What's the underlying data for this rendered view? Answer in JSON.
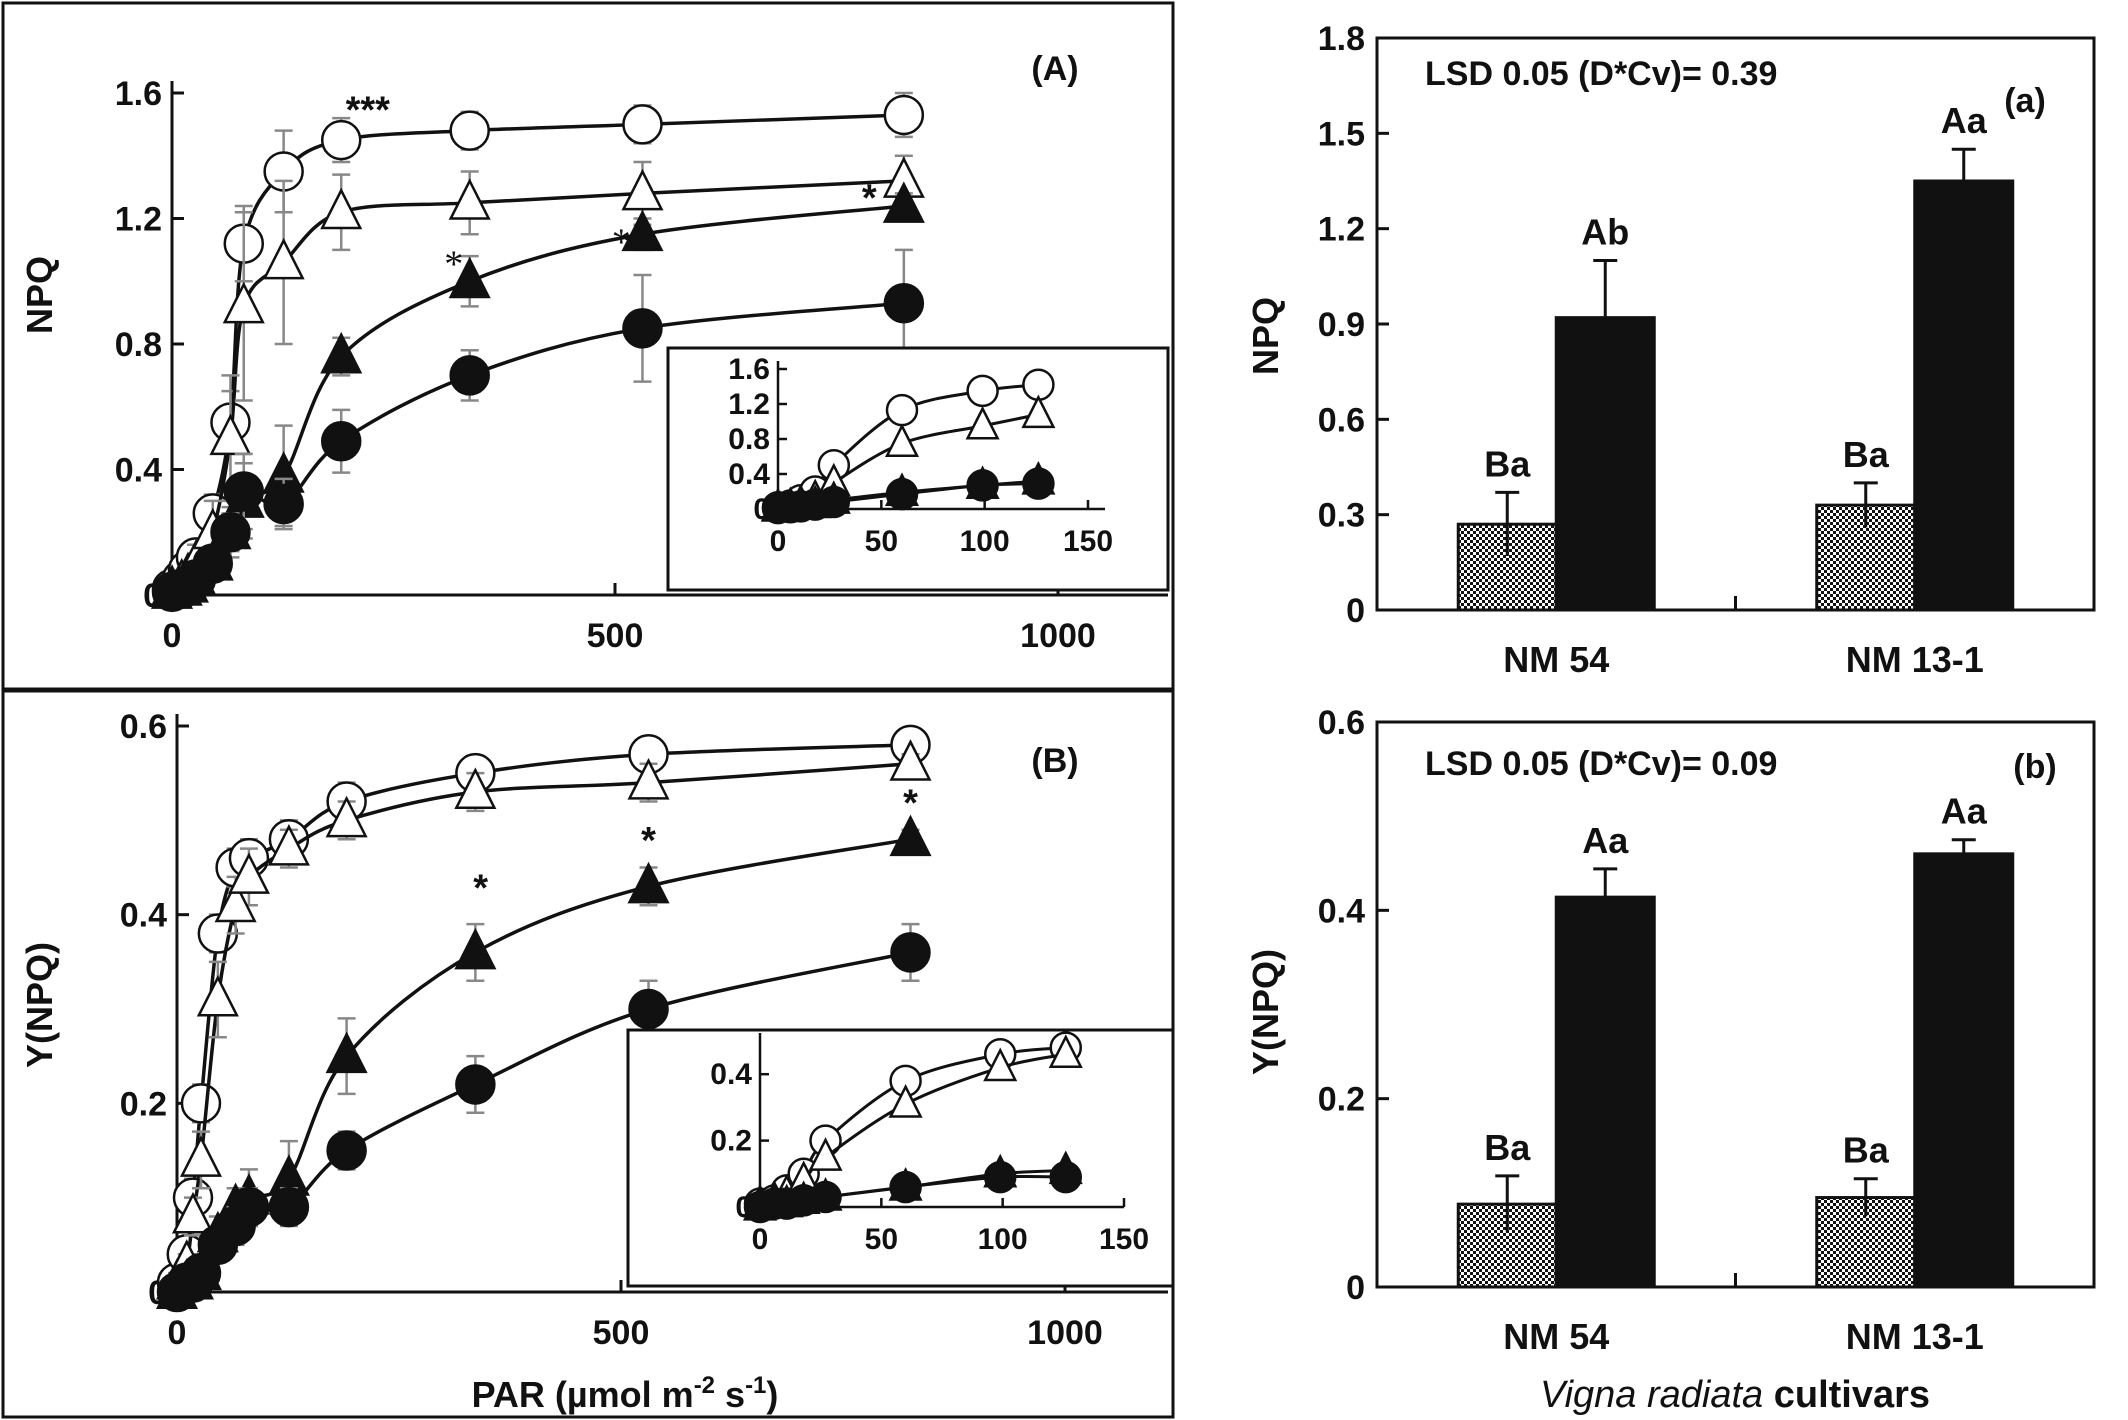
{
  "chart_data": [
    {
      "panel": "A",
      "type": "line",
      "label": "(A)",
      "ylabel": "NPQ",
      "xlabel": "",
      "xlim": [
        0,
        1000
      ],
      "ylim": [
        0,
        1.6
      ],
      "xticks": [
        "0",
        "500",
        "1000"
      ],
      "yticks": [
        "0",
        "0.4",
        "0.8",
        "1.2",
        "1.6"
      ],
      "x": [
        0,
        11,
        18,
        27,
        46,
        66,
        81,
        126,
        191,
        336,
        531,
        826
      ],
      "series": [
        {
          "marker": "open-circle",
          "values": [
            0.02,
            0.05,
            0.08,
            0.12,
            0.26,
            0.55,
            1.12,
            1.35,
            1.45,
            1.48,
            1.5,
            1.53
          ],
          "err": [
            0.02,
            0.03,
            0.04,
            0.05,
            0.06,
            0.1,
            0.12,
            0.13,
            0.07,
            0.06,
            0.06,
            0.07
          ]
        },
        {
          "marker": "open-triangle",
          "values": [
            0.02,
            0.04,
            0.06,
            0.1,
            0.2,
            0.5,
            0.92,
            1.06,
            1.22,
            1.25,
            1.28,
            1.32
          ],
          "err": [
            0.02,
            0.03,
            0.04,
            0.06,
            0.1,
            0.2,
            0.3,
            0.26,
            0.12,
            0.1,
            0.1,
            0.08
          ]
        },
        {
          "marker": "filled-triangle",
          "values": [
            0.01,
            0.02,
            0.03,
            0.05,
            0.1,
            0.2,
            0.3,
            0.38,
            0.76,
            1.0,
            1.15,
            1.24
          ],
          "err": [
            0.01,
            0.02,
            0.02,
            0.03,
            0.05,
            0.08,
            0.12,
            0.16,
            0.06,
            0.08,
            0.05,
            0.04
          ]
        },
        {
          "marker": "filled-circle",
          "values": [
            0.01,
            0.02,
            0.03,
            0.05,
            0.1,
            0.2,
            0.33,
            0.29,
            0.49,
            0.7,
            0.85,
            0.93
          ],
          "err": [
            0.01,
            0.02,
            0.02,
            0.03,
            0.05,
            0.06,
            0.12,
            0.08,
            0.1,
            0.08,
            0.17,
            0.17
          ]
        }
      ],
      "annotations": [
        {
          "text": "***",
          "x": 221,
          "y": 1.55,
          "style": "bold"
        },
        {
          "text": "*",
          "x": 318,
          "y": 1.06,
          "style": "plain"
        },
        {
          "text": "*",
          "x": 507,
          "y": 1.13,
          "style": "plain"
        },
        {
          "text": "*",
          "x": 787,
          "y": 1.27,
          "style": "bold"
        }
      ],
      "inset": {
        "xlim": [
          0,
          150
        ],
        "ylim": [
          0,
          1.6
        ],
        "xticks": [
          "0",
          "50",
          "100",
          "150"
        ],
        "yticks": [
          "0",
          "0.4",
          "0.8",
          "1.2",
          "1.6"
        ],
        "x": [
          0,
          6,
          11,
          18,
          27,
          60,
          99,
          126
        ],
        "series": [
          {
            "marker": "open-circle",
            "values": [
              0.02,
              0.04,
              0.1,
              0.2,
              0.5,
              1.13,
              1.35,
              1.42
            ]
          },
          {
            "marker": "open-triangle",
            "values": [
              0.02,
              0.03,
              0.06,
              0.12,
              0.3,
              0.75,
              0.95,
              1.08
            ]
          },
          {
            "marker": "filled-triangle",
            "values": [
              0.01,
              0.02,
              0.03,
              0.05,
              0.1,
              0.19,
              0.27,
              0.32
            ]
          },
          {
            "marker": "filled-circle",
            "values": [
              0.01,
              0.02,
              0.03,
              0.05,
              0.08,
              0.17,
              0.27,
              0.29
            ]
          }
        ]
      }
    },
    {
      "panel": "B",
      "type": "line",
      "label": "(B)",
      "ylabel": "Y(NPQ)",
      "xlabel": "PAR (µmol m⁻² s⁻¹)",
      "xlabel_main": "PAR (µmol m",
      "xlabel_sup1": "-2",
      "xlabel_mid": " s",
      "xlabel_sup2": "-1",
      "xlabel_end": ")",
      "xlim": [
        0,
        1000
      ],
      "ylim": [
        0,
        0.6
      ],
      "xticks": [
        "0",
        "500",
        "1000"
      ],
      "yticks": [
        "0",
        "0.2",
        "0.4",
        "0.6"
      ],
      "x": [
        0,
        11,
        18,
        27,
        46,
        66,
        81,
        126,
        191,
        336,
        531,
        826
      ],
      "series": [
        {
          "marker": "open-circle",
          "values": [
            0.01,
            0.04,
            0.1,
            0.2,
            0.38,
            0.45,
            0.46,
            0.48,
            0.52,
            0.55,
            0.57,
            0.58
          ],
          "err": [
            0.01,
            0.01,
            0.02,
            0.02,
            0.02,
            0.02,
            0.02,
            0.02,
            0.02,
            0.01,
            0.01,
            0.01
          ]
        },
        {
          "marker": "open-triangle",
          "values": [
            0.01,
            0.03,
            0.08,
            0.14,
            0.31,
            0.41,
            0.44,
            0.47,
            0.5,
            0.53,
            0.54,
            0.56
          ],
          "err": [
            0.01,
            0.01,
            0.02,
            0.03,
            0.04,
            0.03,
            0.03,
            0.02,
            0.02,
            0.02,
            0.02,
            0.01
          ]
        },
        {
          "marker": "filled-triangle",
          "values": [
            0.0,
            0.01,
            0.01,
            0.02,
            0.06,
            0.09,
            0.1,
            0.12,
            0.25,
            0.36,
            0.43,
            0.48
          ],
          "err": [
            0.0,
            0.01,
            0.01,
            0.01,
            0.02,
            0.02,
            0.03,
            0.04,
            0.04,
            0.03,
            0.02,
            0.01
          ]
        },
        {
          "marker": "filled-circle",
          "values": [
            0.0,
            0.01,
            0.01,
            0.02,
            0.05,
            0.07,
            0.09,
            0.09,
            0.15,
            0.22,
            0.3,
            0.36
          ],
          "err": [
            0.0,
            0.01,
            0.01,
            0.01,
            0.01,
            0.02,
            0.02,
            0.02,
            0.02,
            0.03,
            0.03,
            0.03
          ]
        }
      ],
      "annotations": [
        {
          "text": "*",
          "x": 342,
          "y": 0.43,
          "style": "bold"
        },
        {
          "text": "*",
          "x": 531,
          "y": 0.48,
          "style": "bold"
        },
        {
          "text": "*",
          "x": 826,
          "y": 0.52,
          "style": "bold"
        }
      ],
      "inset": {
        "xlim": [
          0,
          150
        ],
        "ylim": [
          0,
          0.5
        ],
        "xticks": [
          "0",
          "50",
          "100",
          "150"
        ],
        "yticks": [
          "0",
          "0.2",
          "0.4"
        ],
        "x": [
          0,
          6,
          11,
          18,
          27,
          60,
          99,
          126
        ],
        "series": [
          {
            "marker": "open-circle",
            "values": [
              0.01,
              0.02,
              0.05,
              0.1,
              0.2,
              0.38,
              0.46,
              0.48
            ]
          },
          {
            "marker": "open-triangle",
            "values": [
              0.01,
              0.02,
              0.04,
              0.08,
              0.15,
              0.31,
              0.42,
              0.46
            ]
          },
          {
            "marker": "filled-triangle",
            "values": [
              0.0,
              0.01,
              0.01,
              0.02,
              0.03,
              0.06,
              0.1,
              0.11
            ]
          },
          {
            "marker": "filled-circle",
            "values": [
              0.0,
              0.01,
              0.01,
              0.02,
              0.03,
              0.06,
              0.09,
              0.09
            ]
          }
        ]
      }
    },
    {
      "panel": "a",
      "type": "bar",
      "label": "(a)",
      "ylabel": "NPQ",
      "lsd": "LSD 0.05 (D*Cv)= 0.39",
      "ylim": [
        0,
        1.8
      ],
      "yticks": [
        "0",
        "0.3",
        "0.6",
        "0.9",
        "1.2",
        "1.5",
        "1.8"
      ],
      "categories": [
        "NM 54",
        "NM 13-1"
      ],
      "series": [
        {
          "pattern": "dotted",
          "values": [
            0.27,
            0.33
          ],
          "err": [
            0.1,
            0.07
          ],
          "labels": [
            "Ba",
            "Ba"
          ]
        },
        {
          "pattern": "solid",
          "values": [
            0.92,
            1.35
          ],
          "err": [
            0.18,
            0.1
          ],
          "labels": [
            "Ab",
            "Aa"
          ]
        }
      ]
    },
    {
      "panel": "b",
      "type": "bar",
      "label": "(b)",
      "ylabel": "Y(NPQ)",
      "lsd": "LSD 0.05 (D*Cv)= 0.09",
      "xlabel_italic": "Vigna radiata",
      "xlabel_rest": " cultivars",
      "ylim": [
        0,
        0.6
      ],
      "yticks": [
        "0",
        "0.2",
        "0.4",
        "0.6"
      ],
      "categories": [
        "NM 54",
        "NM 13-1"
      ],
      "series": [
        {
          "pattern": "dotted",
          "values": [
            0.088,
            0.095
          ],
          "err": [
            0.03,
            0.02
          ],
          "labels": [
            "Ba",
            "Ba"
          ]
        },
        {
          "pattern": "solid",
          "values": [
            0.414,
            0.46
          ],
          "err": [
            0.03,
            0.015
          ],
          "labels": [
            "Aa",
            "Aa"
          ]
        }
      ]
    }
  ]
}
